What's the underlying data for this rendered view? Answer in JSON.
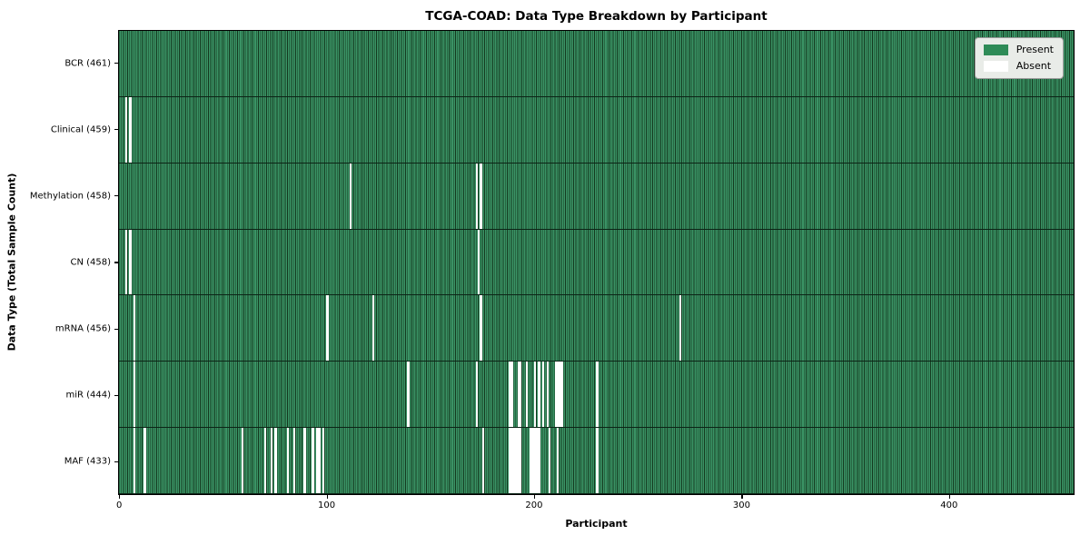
{
  "title": "TCGA-COAD: Data Type Breakdown by Participant",
  "xlabel": "Participant",
  "ylabel": "Data Type (Total Sample Count)",
  "legend": {
    "present_label": "Present",
    "absent_label": "Absent"
  },
  "colors": {
    "present": "#2E8B57",
    "present_fill": "#3A9365",
    "bar_edge": "#14391F",
    "absent": "#FFFFFF",
    "legend_bg": "#E9ECE8",
    "spine": "#000000"
  },
  "chart_data": {
    "type": "heatmap",
    "title": "TCGA-COAD: Data Type Breakdown by Participant",
    "xlabel": "Participant",
    "ylabel": "Data Type (Total Sample Count)",
    "x_ticks": [
      0,
      100,
      200,
      300,
      400
    ],
    "x_range": [
      0,
      461
    ],
    "n_participants": 461,
    "grid": false,
    "legend_position": "upper right",
    "legend_entries": [
      {
        "label": "Present",
        "color": "#2E8B57"
      },
      {
        "label": "Absent",
        "color": "#FFFFFF"
      }
    ],
    "rows": [
      {
        "label": "BCR (461)",
        "data_type": "BCR",
        "present_count": 461,
        "absent_participants": []
      },
      {
        "label": "Clinical (459)",
        "data_type": "Clinical",
        "present_count": 459,
        "absent_participants": [
          3,
          5
        ]
      },
      {
        "label": "Methylation (458)",
        "data_type": "Methylation",
        "present_count": 458,
        "absent_participants": [
          111,
          172,
          174
        ]
      },
      {
        "label": "CN (458)",
        "data_type": "CN",
        "present_count": 458,
        "absent_participants": [
          3,
          5,
          173
        ]
      },
      {
        "label": "mRNA (456)",
        "data_type": "mRNA",
        "present_count": 456,
        "absent_participants": [
          7,
          100,
          122,
          174,
          270
        ]
      },
      {
        "label": "miR (444)",
        "data_type": "miR",
        "present_count": 444,
        "absent_participants": [
          7,
          139,
          172,
          188,
          189,
          192,
          193,
          196,
          200,
          202,
          204,
          206,
          210,
          211,
          212,
          213,
          230
        ]
      },
      {
        "label": "MAF (433)",
        "data_type": "MAF",
        "present_count": 433,
        "absent_participants": [
          7,
          12,
          59,
          70,
          73,
          75,
          81,
          84,
          89,
          93,
          95,
          96,
          98,
          175,
          188,
          189,
          190,
          191,
          192,
          193,
          198,
          199,
          200,
          201,
          202,
          207,
          211,
          230
        ]
      }
    ]
  }
}
